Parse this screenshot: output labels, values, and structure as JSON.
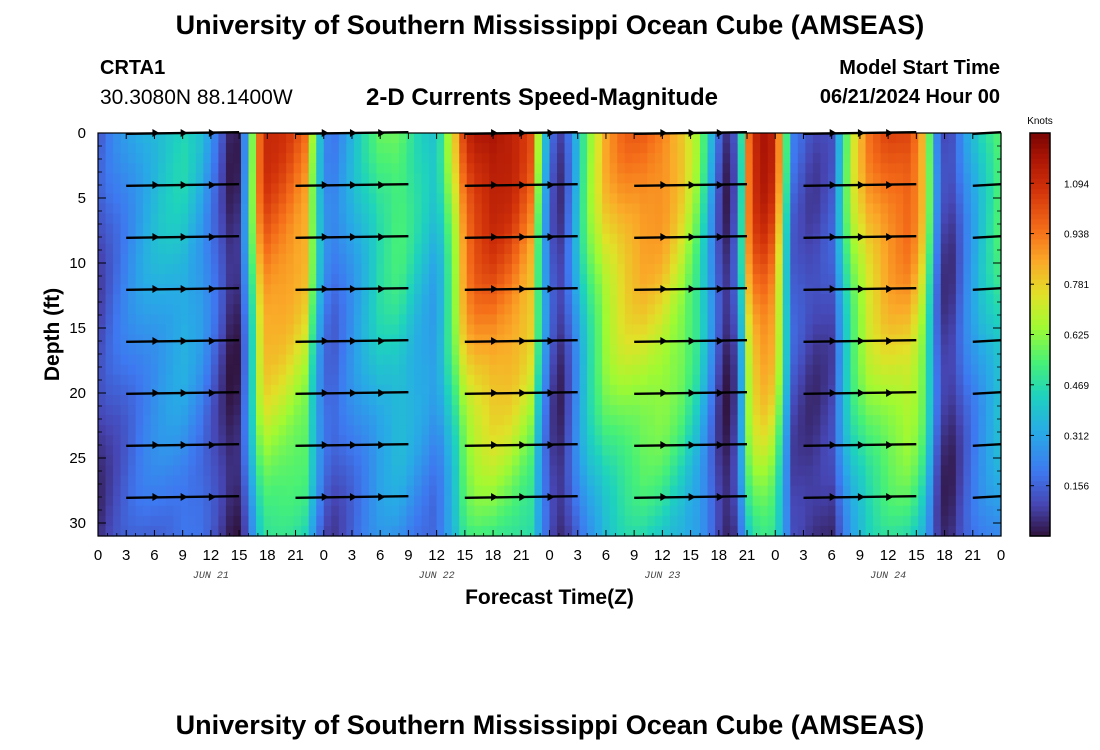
{
  "header": {
    "title_top": "University of Southern Mississippi Ocean Cube (AMSEAS)",
    "title_bottom": "University of Southern Mississippi Ocean Cube (AMSEAS)",
    "station": "CRTA1",
    "coordinates": "30.3080N  88.1400W",
    "subtitle": "2-D Currents Speed-Magnitude",
    "model_start_label": "Model Start Time",
    "model_start_value": "06/21/2024 Hour 00"
  },
  "chart_data": {
    "type": "heatmap",
    "title": "2-D Currents Speed-Magnitude",
    "xlabel": "Forecast Time(Z)",
    "ylabel": "Depth (ft)",
    "xlim": [
      0,
      96
    ],
    "ylim": [
      0,
      31
    ],
    "y_inverted": true,
    "x_tick_step_hours": 3,
    "x_tick_labels": [
      "0",
      "3",
      "6",
      "9",
      "12",
      "15",
      "18",
      "21",
      "0",
      "3",
      "6",
      "9",
      "12",
      "15",
      "18",
      "21",
      "0",
      "3",
      "6",
      "9",
      "12",
      "15",
      "18",
      "21",
      "0",
      "3",
      "6",
      "9",
      "12",
      "15",
      "18",
      "21",
      "0"
    ],
    "y_ticks": [
      0,
      5,
      10,
      15,
      20,
      25,
      30
    ],
    "y_tick_labels": [
      "0",
      "5",
      "10",
      "15",
      "20",
      "25",
      "30"
    ],
    "day_labels": [
      {
        "hour": 12,
        "label": "JUN 21"
      },
      {
        "hour": 36,
        "label": "JUN 22"
      },
      {
        "hour": 60,
        "label": "JUN 23"
      },
      {
        "hour": 84,
        "label": "JUN 24"
      }
    ],
    "colorbar": {
      "unit": "Knots",
      "min": 0.0,
      "max": 1.25,
      "ticks": [
        0.156,
        0.312,
        0.469,
        0.625,
        0.781,
        0.938,
        1.094
      ],
      "tick_labels": [
        "0.156",
        "0.312",
        "0.469",
        "0.625",
        "0.781",
        "0.938",
        "1.094"
      ]
    },
    "speed_profile": {
      "description": "Surface current speed (knots) vs forecast hour; speed decays with depth",
      "hours": [
        0,
        1,
        3,
        5,
        7,
        9,
        11,
        13,
        14,
        15,
        16,
        17,
        18,
        20,
        22,
        23,
        24,
        25,
        26,
        28,
        30,
        32,
        34,
        36,
        38,
        39,
        40,
        42,
        44,
        46,
        47,
        48,
        49,
        50,
        52,
        54,
        56,
        58,
        60,
        62,
        64,
        66,
        67,
        68,
        69,
        70,
        71,
        72,
        73,
        74,
        76,
        78,
        80,
        82,
        84,
        86,
        87,
        88,
        89,
        90,
        91,
        92,
        94,
        96
      ],
      "speeds": [
        0.12,
        0.18,
        0.27,
        0.36,
        0.42,
        0.45,
        0.35,
        0.15,
        0.05,
        0.05,
        0.42,
        0.95,
        1.1,
        1.05,
        0.95,
        0.6,
        0.28,
        0.22,
        0.28,
        0.42,
        0.55,
        0.6,
        0.48,
        0.38,
        0.78,
        1.05,
        1.15,
        1.2,
        1.15,
        1.0,
        0.55,
        0.2,
        0.06,
        0.2,
        0.62,
        0.85,
        0.95,
        0.98,
        0.95,
        0.82,
        0.6,
        0.15,
        0.03,
        0.2,
        0.95,
        1.15,
        1.2,
        1.1,
        0.58,
        0.18,
        0.1,
        0.15,
        0.7,
        0.92,
        1.02,
        1.05,
        0.98,
        0.8,
        0.28,
        0.1,
        0.1,
        0.25,
        0.45,
        0.6
      ]
    },
    "vector_depths": [
      0,
      4,
      8,
      12,
      16,
      20,
      24,
      28
    ],
    "vector_rows_hours": [
      [
        3,
        15
      ],
      [
        21,
        33
      ],
      [
        39,
        51
      ],
      [
        57,
        69
      ],
      [
        75,
        87
      ],
      [
        93,
        96
      ]
    ]
  }
}
